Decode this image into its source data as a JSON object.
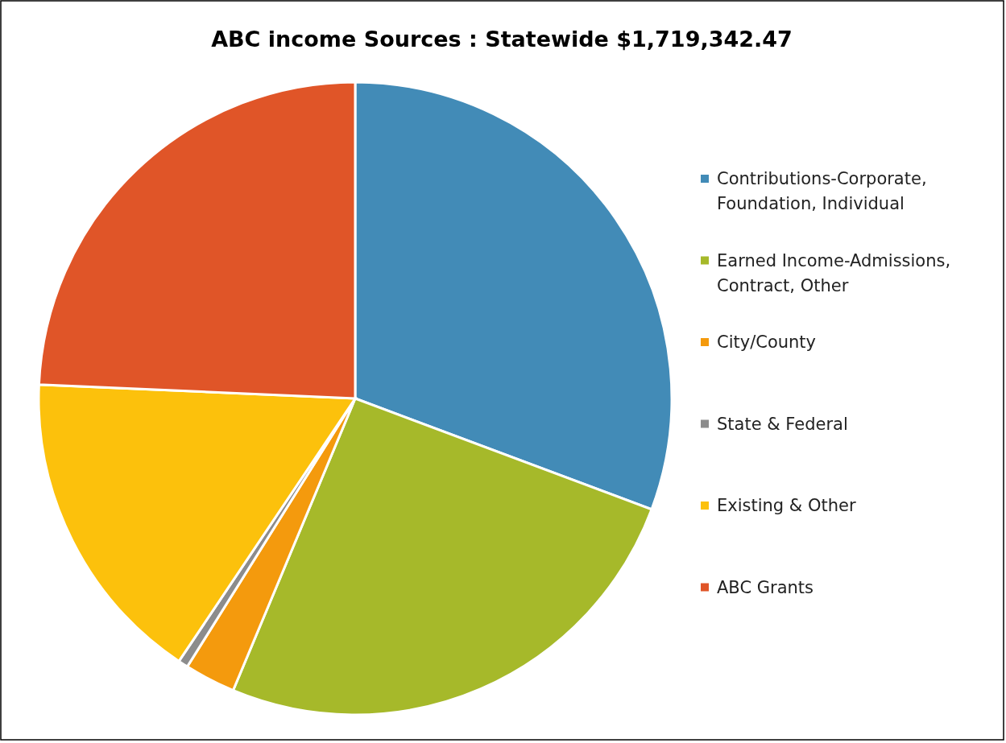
{
  "chart_data": {
    "type": "pie",
    "title": "ABC income Sources : Statewide $1,719,342.47",
    "categories": [
      "Contributions-Corporate, Foundation, Individual",
      "Earned Income-Admissions, Contract, Other",
      "City/County",
      "State & Federal",
      "Existing & Other",
      "ABC Grants"
    ],
    "values": [
      30.7,
      25.6,
      2.6,
      0.5,
      16.3,
      24.3
    ],
    "colors": [
      "#428bb7",
      "#a6b92a",
      "#f49a0d",
      "#8c8c8c",
      "#fcc10c",
      "#e05528"
    ],
    "legend": "right"
  }
}
